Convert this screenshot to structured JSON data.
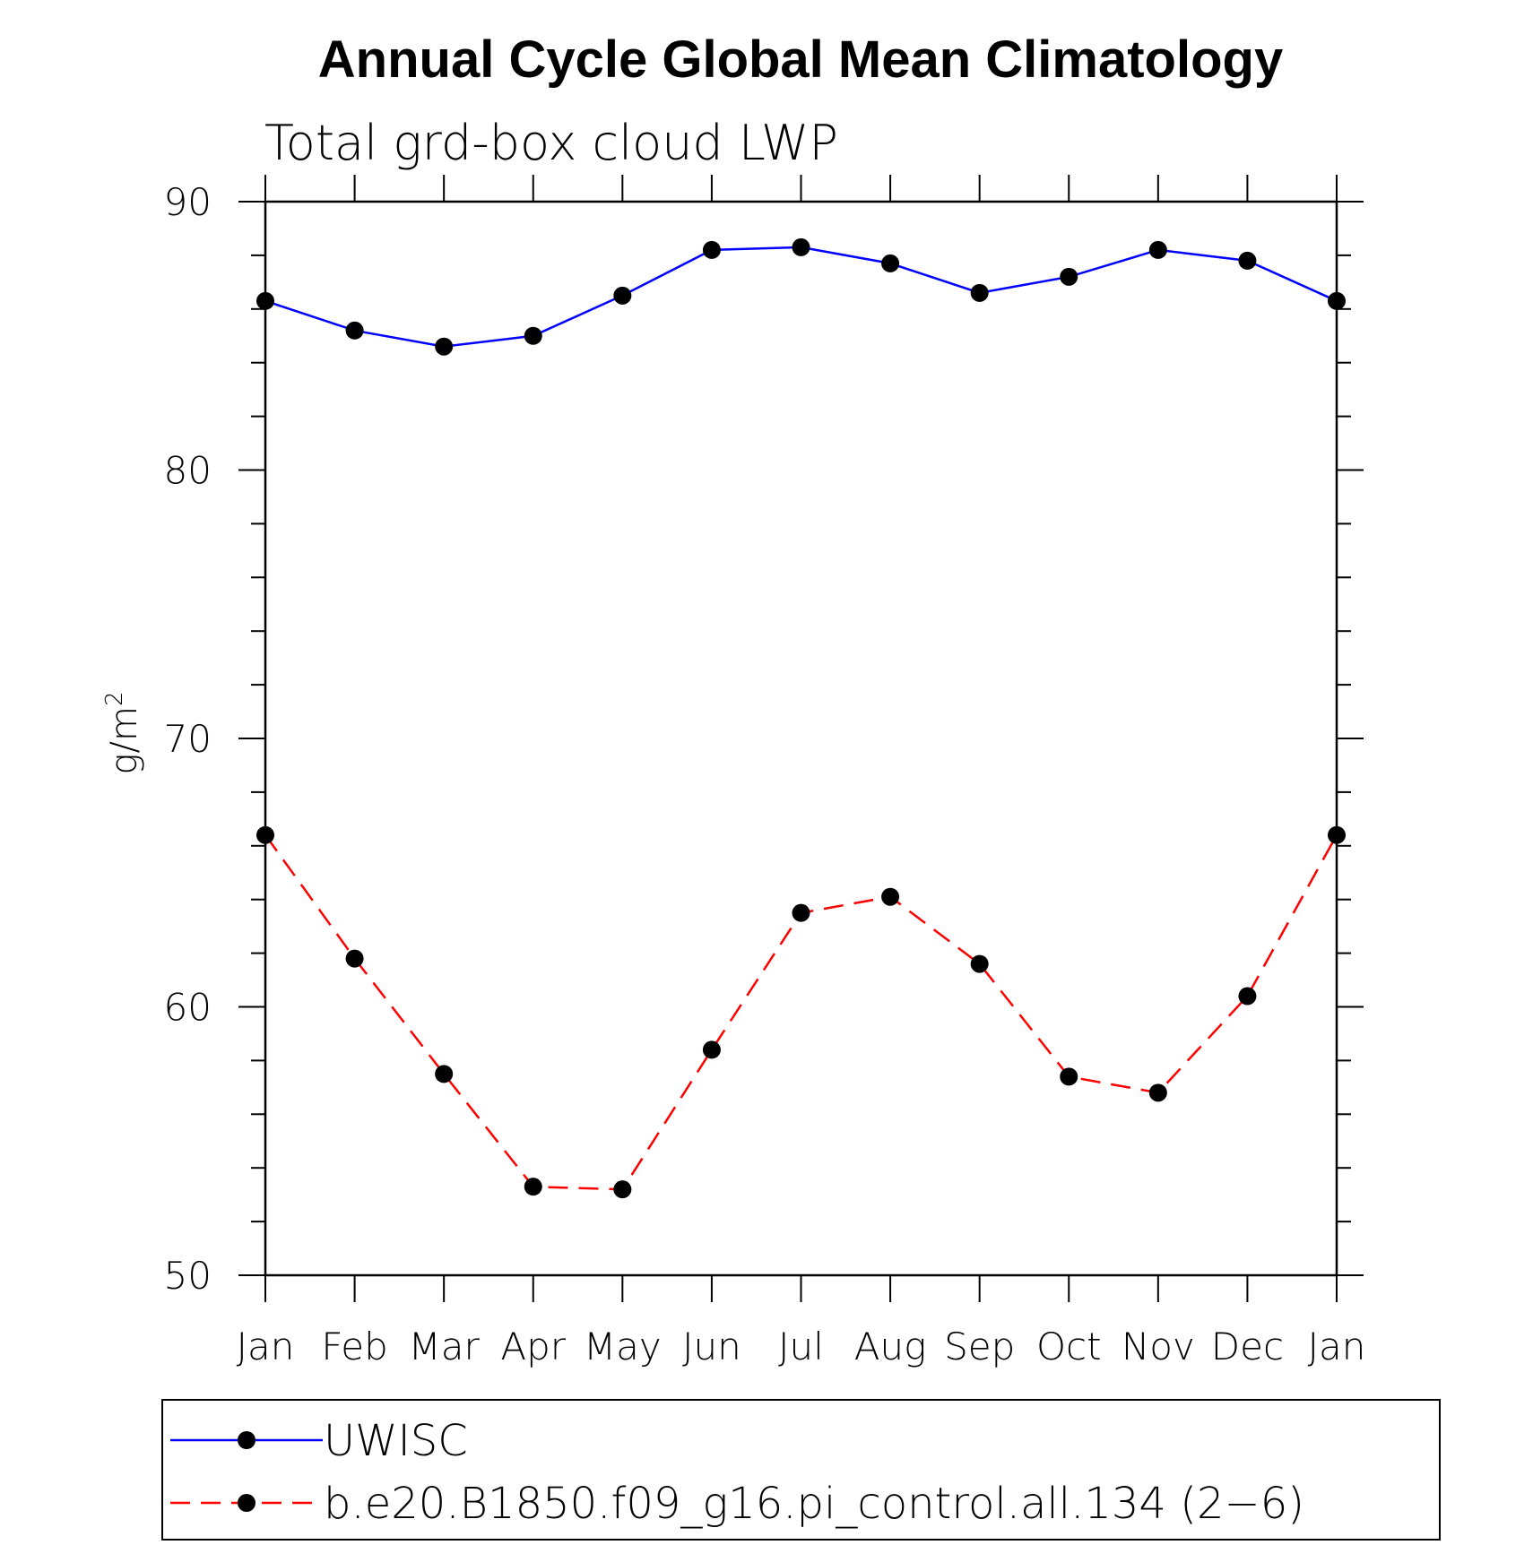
{
  "chart_data": {
    "type": "line",
    "title": "Annual Cycle Global Mean Climatology",
    "subtitle": "Total grd-box cloud LWP",
    "xlabel": "",
    "ylabel": "g/m",
    "ylabel_superscript": "2",
    "ylim": [
      50,
      90
    ],
    "yticks": [
      "90",
      "80",
      "70",
      "60",
      "50"
    ],
    "categories": [
      "Jan",
      "Feb",
      "Mar",
      "Apr",
      "May",
      "Jun",
      "Jul",
      "Aug",
      "Sep",
      "Oct",
      "Nov",
      "Dec",
      "Jan"
    ],
    "series": [
      {
        "name": "UWISC",
        "color": "#0000ff",
        "style": "solid",
        "values": [
          86.3,
          85.2,
          84.6,
          85.0,
          86.5,
          88.2,
          88.3,
          87.7,
          86.6,
          87.2,
          88.2,
          87.8,
          86.3
        ]
      },
      {
        "name": "b.e20.B1850.f09_g16.pi_control.all.134 (2−6)",
        "color": "#ff0000",
        "style": "dashed",
        "values": [
          66.4,
          61.8,
          57.5,
          53.3,
          53.2,
          58.4,
          63.5,
          64.1,
          61.6,
          57.4,
          56.8,
          60.4,
          66.4
        ]
      }
    ],
    "legend_position": "bottom"
  }
}
